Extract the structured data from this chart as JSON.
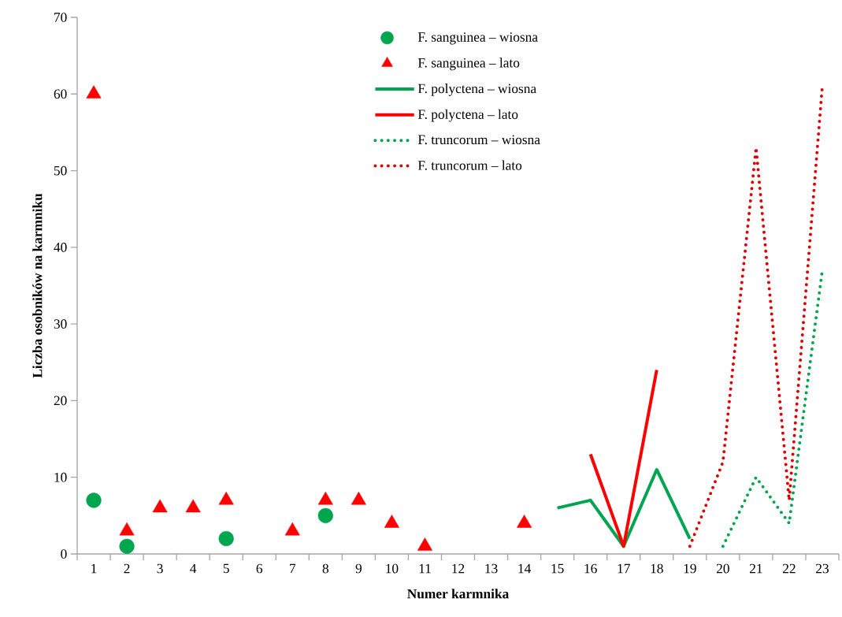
{
  "chart_data": {
    "type": "line",
    "xlabel": "Numer karmnika",
    "ylabel": "Liczba osobników na karmniku",
    "categories": [
      "1",
      "2",
      "3",
      "4",
      "5",
      "6",
      "7",
      "8",
      "9",
      "10",
      "11",
      "12",
      "13",
      "14",
      "15",
      "16",
      "17",
      "18",
      "19",
      "20",
      "21",
      "22",
      "23"
    ],
    "ylim": [
      0,
      70
    ],
    "yticks": [
      0,
      10,
      20,
      30,
      40,
      50,
      60,
      70
    ],
    "grid": false,
    "legend": "top",
    "series": [
      {
        "name": "F. sanguinea – wiosna",
        "type": "scatter",
        "marker": "circle",
        "color": "#00a550",
        "values": [
          7,
          1,
          null,
          null,
          2,
          null,
          null,
          5,
          null,
          null,
          null,
          null,
          null,
          null,
          null,
          null,
          null,
          null,
          null,
          null,
          null,
          null,
          null
        ]
      },
      {
        "name": "F. sanguinea – lato",
        "type": "scatter",
        "marker": "triangle",
        "color": "#ff0000",
        "values": [
          60,
          3,
          6,
          6,
          7,
          null,
          3,
          7,
          7,
          4,
          1,
          null,
          null,
          4,
          null,
          null,
          null,
          null,
          null,
          null,
          null,
          null,
          null
        ]
      },
      {
        "name": "F. polyctena – wiosna",
        "line_style": "solid",
        "color": "#00a550",
        "values": [
          null,
          null,
          null,
          null,
          null,
          null,
          null,
          null,
          null,
          null,
          null,
          null,
          null,
          null,
          6,
          7,
          1,
          11,
          2,
          null,
          null,
          null,
          null
        ]
      },
      {
        "name": "F. polyctena – lato",
        "line_style": "solid",
        "color": "#ff0000",
        "values": [
          null,
          null,
          null,
          null,
          null,
          null,
          null,
          null,
          null,
          null,
          null,
          null,
          null,
          null,
          null,
          13,
          1,
          24,
          null,
          null,
          null,
          null,
          null
        ]
      },
      {
        "name": "F. truncorum – wiosna",
        "line_style": "dotted",
        "color": "#00a550",
        "values": [
          null,
          null,
          null,
          null,
          null,
          null,
          null,
          null,
          null,
          null,
          null,
          null,
          null,
          null,
          null,
          null,
          null,
          null,
          null,
          1,
          10,
          4,
          37
        ]
      },
      {
        "name": "F. truncorum – lato",
        "line_style": "dotted",
        "color": "#e00000",
        "values": [
          null,
          null,
          null,
          null,
          null,
          null,
          null,
          null,
          null,
          null,
          null,
          null,
          null,
          null,
          null,
          null,
          null,
          null,
          1,
          12,
          53,
          7,
          61
        ]
      }
    ]
  }
}
